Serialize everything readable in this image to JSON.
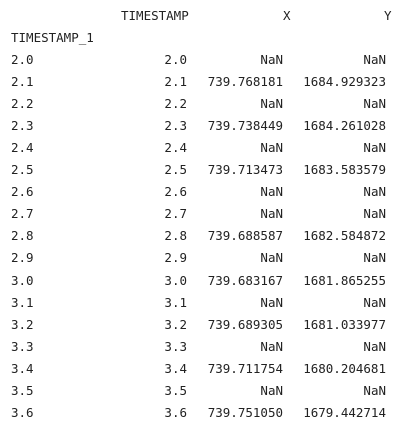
{
  "dataframe": {
    "columns": [
      "TIMESTAMP",
      "X",
      "Y"
    ],
    "index_name": "TIMESTAMP_1",
    "rows": [
      {
        "index": "2.0",
        "timestamp": "2.0",
        "x": "NaN",
        "y": "NaN"
      },
      {
        "index": "2.1",
        "timestamp": "2.1",
        "x": "739.768181",
        "y": "1684.929323"
      },
      {
        "index": "2.2",
        "timestamp": "2.2",
        "x": "NaN",
        "y": "NaN"
      },
      {
        "index": "2.3",
        "timestamp": "2.3",
        "x": "739.738449",
        "y": "1684.261028"
      },
      {
        "index": "2.4",
        "timestamp": "2.4",
        "x": "NaN",
        "y": "NaN"
      },
      {
        "index": "2.5",
        "timestamp": "2.5",
        "x": "739.713473",
        "y": "1683.583579"
      },
      {
        "index": "2.6",
        "timestamp": "2.6",
        "x": "NaN",
        "y": "NaN"
      },
      {
        "index": "2.7",
        "timestamp": "2.7",
        "x": "NaN",
        "y": "NaN"
      },
      {
        "index": "2.8",
        "timestamp": "2.8",
        "x": "739.688587",
        "y": "1682.584872"
      },
      {
        "index": "2.9",
        "timestamp": "2.9",
        "x": "NaN",
        "y": "NaN"
      },
      {
        "index": "3.0",
        "timestamp": "3.0",
        "x": "739.683167",
        "y": "1681.865255"
      },
      {
        "index": "3.1",
        "timestamp": "3.1",
        "x": "NaN",
        "y": "NaN"
      },
      {
        "index": "3.2",
        "timestamp": "3.2",
        "x": "739.689305",
        "y": "1681.033977"
      },
      {
        "index": "3.3",
        "timestamp": "3.3",
        "x": "NaN",
        "y": "NaN"
      },
      {
        "index": "3.4",
        "timestamp": "3.4",
        "x": "739.711754",
        "y": "1680.204681"
      },
      {
        "index": "3.5",
        "timestamp": "3.5",
        "x": "NaN",
        "y": "NaN"
      },
      {
        "index": "3.6",
        "timestamp": "3.6",
        "x": "739.751050",
        "y": "1679.442714"
      }
    ]
  }
}
